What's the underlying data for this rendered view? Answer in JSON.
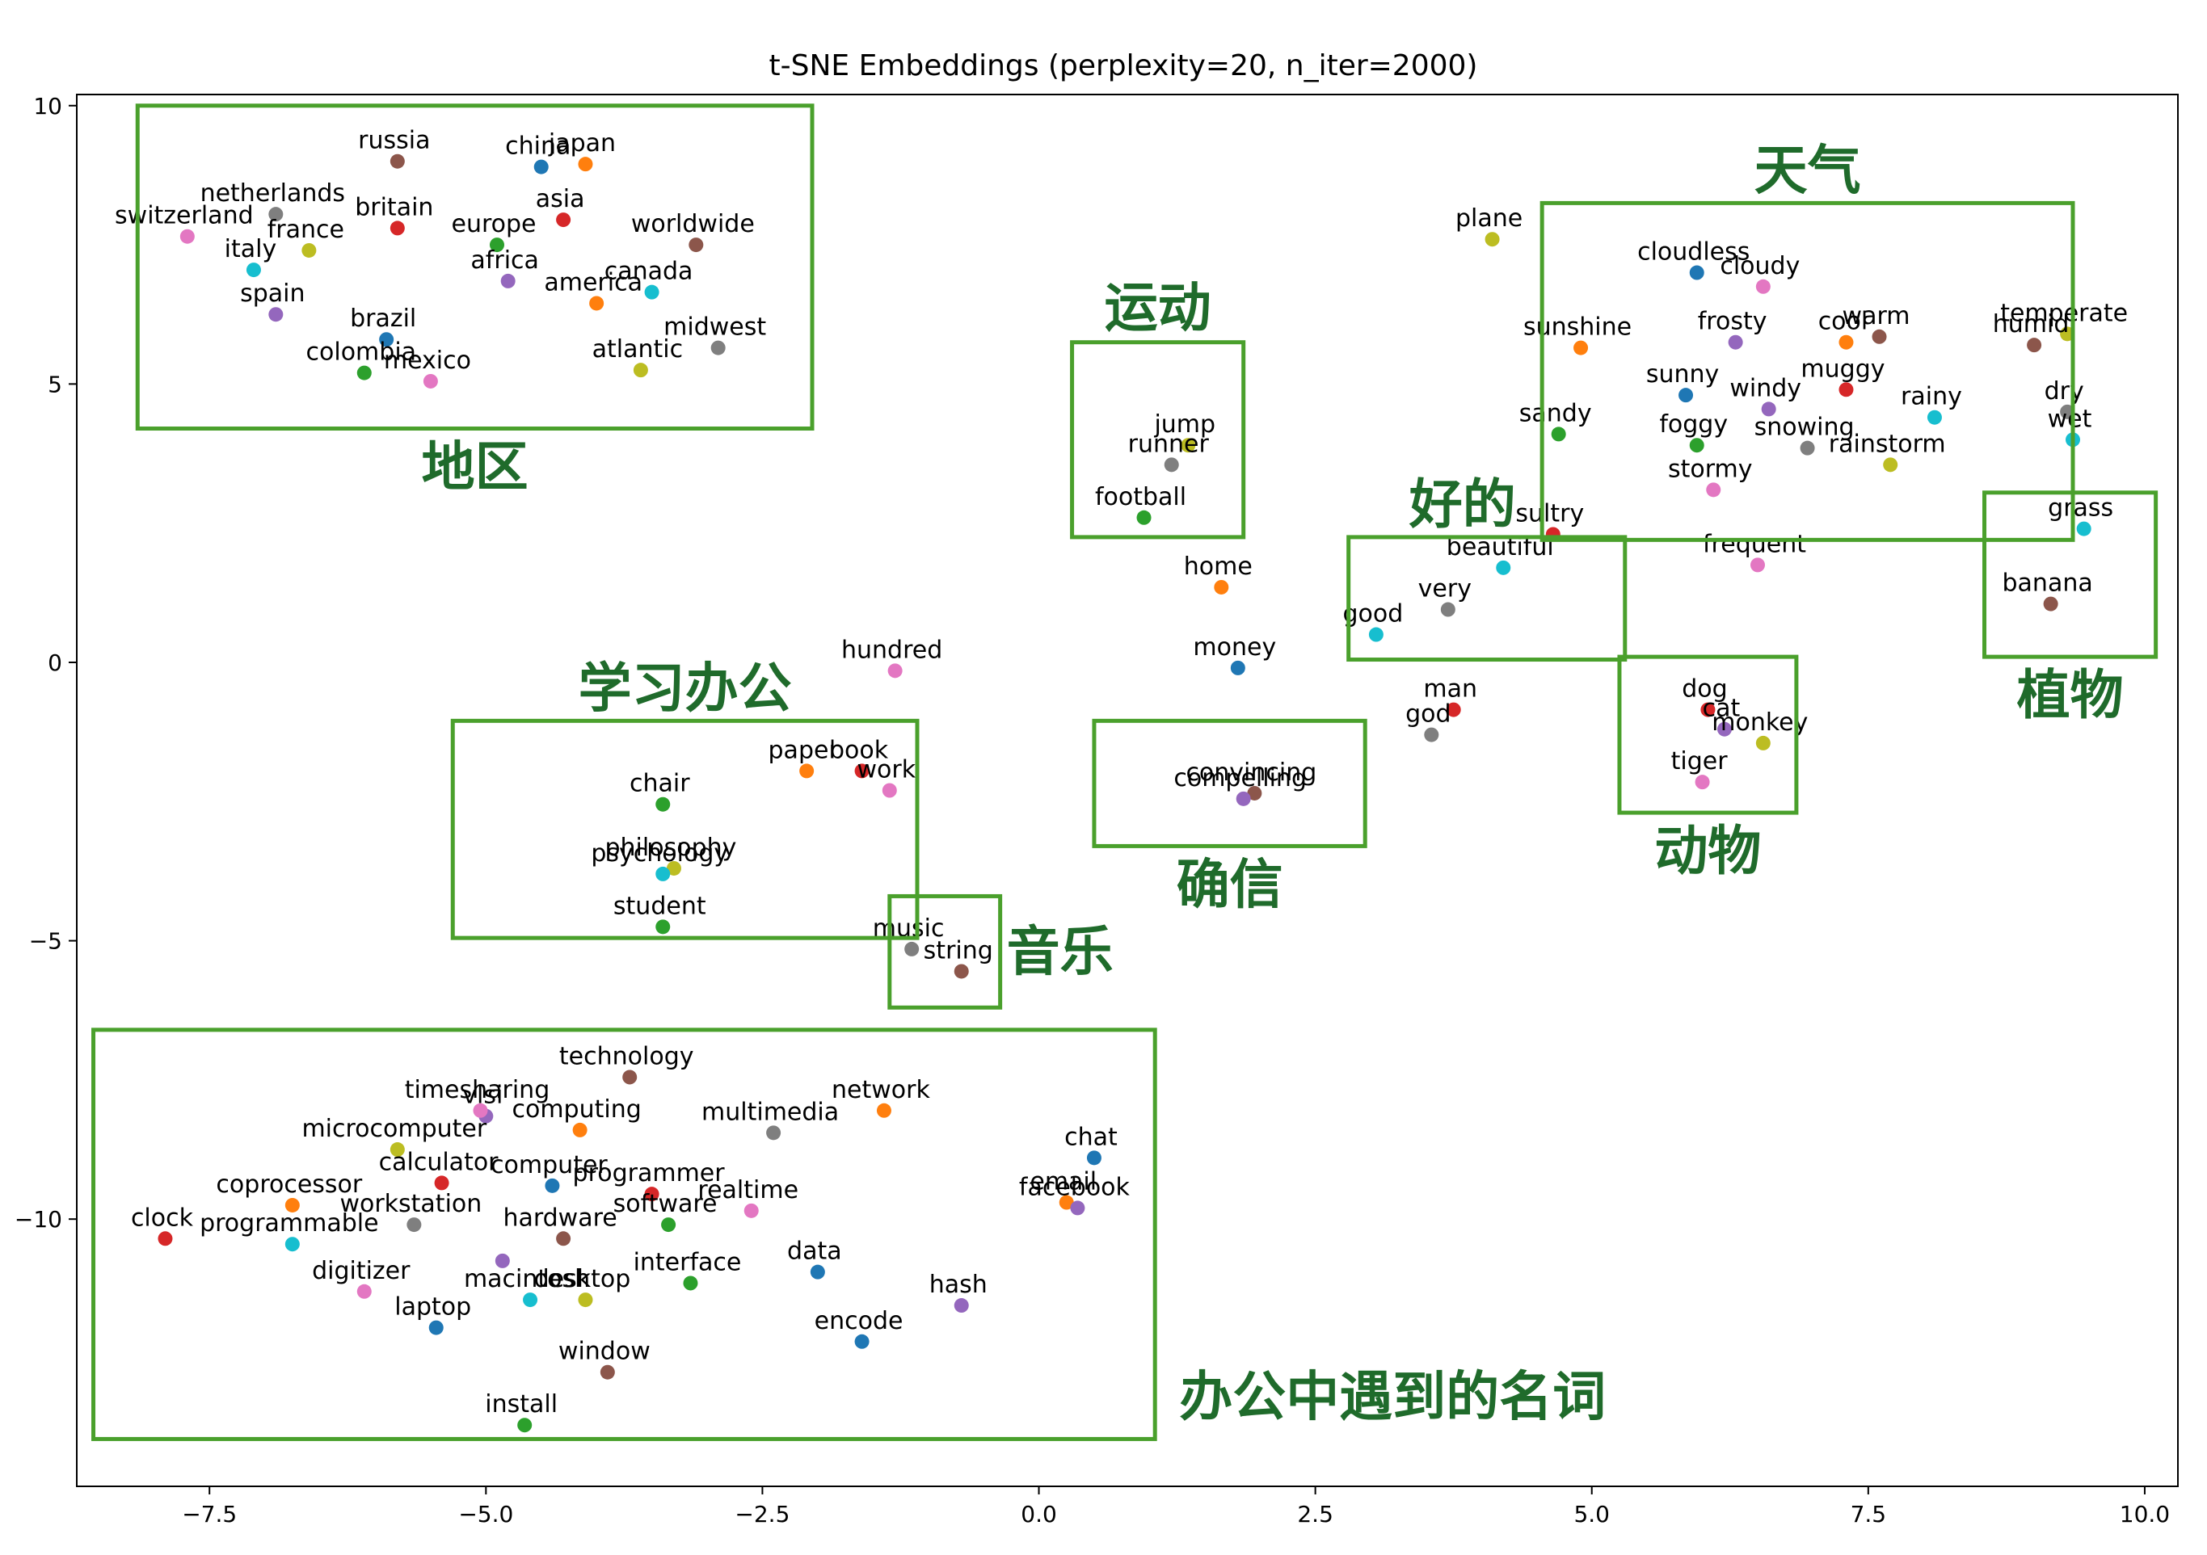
{
  "chart_data": {
    "type": "scatter",
    "title": "t-SNE Embeddings (perplexity=20, n_iter=2000)",
    "xlabel": "",
    "ylabel": "",
    "xlim": [
      -8.7,
      10.3
    ],
    "ylim": [
      -14.8,
      10.2
    ],
    "xticks": [
      -7.5,
      -5.0,
      -2.5,
      0.0,
      2.5,
      5.0,
      7.5,
      10.0
    ],
    "yticks": [
      10,
      5,
      0,
      -5,
      -10
    ],
    "xtick_labels": [
      "−7.5",
      "−5.0",
      "−2.5",
      "0.0",
      "2.5",
      "5.0",
      "7.5",
      "10.0"
    ],
    "ytick_labels": [
      "10",
      "5",
      "0",
      "−5",
      "−10"
    ],
    "grid": false,
    "palette": [
      "#1f77b4",
      "#ff7f0e",
      "#2ca02c",
      "#d62728",
      "#9467bd",
      "#8c564b",
      "#e377c2",
      "#7f7f7f",
      "#bcbd22",
      "#17becf"
    ],
    "box_color": "#4aa02c",
    "annotation_color": "#1f6b2b",
    "points": [
      {
        "word": "russia",
        "x": -5.8,
        "y": 9.0,
        "c": 5
      },
      {
        "word": "china",
        "x": -4.5,
        "y": 8.9,
        "c": 0
      },
      {
        "word": "japan",
        "x": -4.1,
        "y": 8.95,
        "c": 1
      },
      {
        "word": "netherlands",
        "x": -6.9,
        "y": 8.05,
        "c": 7
      },
      {
        "word": "britain",
        "x": -5.8,
        "y": 7.8,
        "c": 3
      },
      {
        "word": "asia",
        "x": -4.3,
        "y": 7.95,
        "c": 3
      },
      {
        "word": "switzerland",
        "x": -7.7,
        "y": 7.65,
        "c": 6
      },
      {
        "word": "france",
        "x": -6.6,
        "y": 7.4,
        "c": 8
      },
      {
        "word": "europe",
        "x": -4.9,
        "y": 7.5,
        "c": 2
      },
      {
        "word": "worldwide",
        "x": -3.1,
        "y": 7.5,
        "c": 5
      },
      {
        "word": "italy",
        "x": -7.1,
        "y": 7.05,
        "c": 9
      },
      {
        "word": "africa",
        "x": -4.8,
        "y": 6.85,
        "c": 4
      },
      {
        "word": "canada",
        "x": -3.5,
        "y": 6.65,
        "c": 9
      },
      {
        "word": "america",
        "x": -4.0,
        "y": 6.45,
        "c": 1
      },
      {
        "word": "spain",
        "x": -6.9,
        "y": 6.25,
        "c": 4
      },
      {
        "word": "midwest",
        "x": -2.9,
        "y": 5.65,
        "c": 7
      },
      {
        "word": "brazil",
        "x": -5.9,
        "y": 5.8,
        "c": 0
      },
      {
        "word": "colombia",
        "x": -6.1,
        "y": 5.2,
        "c": 2
      },
      {
        "word": "mexico",
        "x": -5.5,
        "y": 5.05,
        "c": 6
      },
      {
        "word": "atlantic",
        "x": -3.6,
        "y": 5.25,
        "c": 8
      },
      {
        "word": "plane",
        "x": 4.1,
        "y": 7.6,
        "c": 8
      },
      {
        "word": "cloudless",
        "x": 5.95,
        "y": 7.0,
        "c": 0
      },
      {
        "word": "cloudy",
        "x": 6.55,
        "y": 6.75,
        "c": 6
      },
      {
        "word": "sunshine",
        "x": 4.9,
        "y": 5.65,
        "c": 1
      },
      {
        "word": "frosty",
        "x": 6.3,
        "y": 5.75,
        "c": 4
      },
      {
        "word": "cool",
        "x": 7.3,
        "y": 5.75,
        "c": 1
      },
      {
        "word": "warm",
        "x": 7.6,
        "y": 5.85,
        "c": 5
      },
      {
        "word": "temperate",
        "x": 9.3,
        "y": 5.9,
        "c": 8
      },
      {
        "word": "humid",
        "x": 9.0,
        "y": 5.7,
        "c": 5
      },
      {
        "word": "sunny",
        "x": 5.85,
        "y": 4.8,
        "c": 0
      },
      {
        "word": "muggy",
        "x": 7.3,
        "y": 4.9,
        "c": 3
      },
      {
        "word": "windy",
        "x": 6.6,
        "y": 4.55,
        "c": 4
      },
      {
        "word": "rainy",
        "x": 8.1,
        "y": 4.4,
        "c": 9
      },
      {
        "word": "dry",
        "x": 9.3,
        "y": 4.5,
        "c": 7
      },
      {
        "word": "sandy",
        "x": 4.7,
        "y": 4.1,
        "c": 2
      },
      {
        "word": "foggy",
        "x": 5.95,
        "y": 3.9,
        "c": 2
      },
      {
        "word": "snowing",
        "x": 6.95,
        "y": 3.85,
        "c": 7
      },
      {
        "word": "wet",
        "x": 9.35,
        "y": 4.0,
        "c": 9
      },
      {
        "word": "stormy",
        "x": 6.1,
        "y": 3.1,
        "c": 6
      },
      {
        "word": "rainstorm",
        "x": 7.7,
        "y": 3.55,
        "c": 8
      },
      {
        "word": "sultry",
        "x": 4.65,
        "y": 2.3,
        "c": 3
      },
      {
        "word": "frequent",
        "x": 6.5,
        "y": 1.75,
        "c": 6
      },
      {
        "word": "grass",
        "x": 9.45,
        "y": 2.4,
        "c": 9
      },
      {
        "word": "banana",
        "x": 9.15,
        "y": 1.05,
        "c": 5
      },
      {
        "word": "jump",
        "x": 1.35,
        "y": 3.9,
        "c": 8
      },
      {
        "word": "runner",
        "x": 1.2,
        "y": 3.55,
        "c": 7
      },
      {
        "word": "football",
        "x": 0.95,
        "y": 2.6,
        "c": 2
      },
      {
        "word": "home",
        "x": 1.65,
        "y": 1.35,
        "c": 1
      },
      {
        "word": "beautiful",
        "x": 4.2,
        "y": 1.7,
        "c": 9
      },
      {
        "word": "very",
        "x": 3.7,
        "y": 0.95,
        "c": 7
      },
      {
        "word": "good",
        "x": 3.05,
        "y": 0.5,
        "c": 9
      },
      {
        "word": "money",
        "x": 1.8,
        "y": -0.1,
        "c": 0
      },
      {
        "word": "hundred",
        "x": -1.3,
        "y": -0.15,
        "c": 6
      },
      {
        "word": "man",
        "x": 3.75,
        "y": -0.85,
        "c": 3
      },
      {
        "word": "god",
        "x": 3.55,
        "y": -1.3,
        "c": 7
      },
      {
        "word": "dog",
        "x": 6.05,
        "y": -0.85,
        "c": 3
      },
      {
        "word": "cat",
        "x": 6.2,
        "y": -1.2,
        "c": 4
      },
      {
        "word": "monkey",
        "x": 6.55,
        "y": -1.45,
        "c": 8
      },
      {
        "word": "tiger",
        "x": 6.0,
        "y": -2.15,
        "c": 6
      },
      {
        "word": "convincing",
        "x": 1.95,
        "y": -2.35,
        "c": 5
      },
      {
        "word": "compelling",
        "x": 1.85,
        "y": -2.45,
        "c": 4
      },
      {
        "word": "paper",
        "x": -2.1,
        "y": -1.95,
        "c": 1
      },
      {
        "word": "book",
        "x": -1.6,
        "y": -1.95,
        "c": 3
      },
      {
        "word": "work",
        "x": -1.35,
        "y": -2.3,
        "c": 6
      },
      {
        "word": "chair",
        "x": -3.4,
        "y": -2.55,
        "c": 2
      },
      {
        "word": "philosophy",
        "x": -3.3,
        "y": -3.7,
        "c": 8
      },
      {
        "word": "psychology",
        "x": -3.4,
        "y": -3.8,
        "c": 9
      },
      {
        "word": "student",
        "x": -3.4,
        "y": -4.75,
        "c": 2
      },
      {
        "word": "music",
        "x": -1.15,
        "y": -5.15,
        "c": 7
      },
      {
        "word": "string",
        "x": -0.7,
        "y": -5.55,
        "c": 5
      },
      {
        "word": "technology",
        "x": -3.7,
        "y": -7.45,
        "c": 5
      },
      {
        "word": "network",
        "x": -1.4,
        "y": -8.05,
        "c": 1
      },
      {
        "word": "vlsi",
        "x": -5.0,
        "y": -8.15,
        "c": 4
      },
      {
        "word": "timesharing",
        "x": -5.05,
        "y": -8.05,
        "c": 6
      },
      {
        "word": "computing",
        "x": -4.15,
        "y": -8.4,
        "c": 1
      },
      {
        "word": "multimedia",
        "x": -2.4,
        "y": -8.45,
        "c": 7
      },
      {
        "word": "microcomputer",
        "x": -5.8,
        "y": -8.75,
        "c": 8
      },
      {
        "word": "chat",
        "x": 0.5,
        "y": -8.9,
        "c": 0
      },
      {
        "word": "computer",
        "x": -4.4,
        "y": -9.4,
        "c": 0
      },
      {
        "word": "calculator",
        "x": -5.4,
        "y": -9.35,
        "c": 3
      },
      {
        "word": "programmer",
        "x": -3.5,
        "y": -9.55,
        "c": 3
      },
      {
        "word": "email",
        "x": 0.25,
        "y": -9.7,
        "c": 1
      },
      {
        "word": "coprocessor",
        "x": -6.75,
        "y": -9.75,
        "c": 1
      },
      {
        "word": "facebook",
        "x": 0.35,
        "y": -9.8,
        "c": 4
      },
      {
        "word": "realtime",
        "x": -2.6,
        "y": -9.85,
        "c": 6
      },
      {
        "word": "software",
        "x": -3.35,
        "y": -10.1,
        "c": 2
      },
      {
        "word": "workstation",
        "x": -5.65,
        "y": -10.1,
        "c": 7
      },
      {
        "word": "hardware",
        "x": -4.3,
        "y": -10.35,
        "c": 5
      },
      {
        "word": "clock",
        "x": -7.9,
        "y": -10.35,
        "c": 3
      },
      {
        "word": "programmable",
        "x": -6.75,
        "y": -10.45,
        "c": 9
      },
      {
        "word": "workstation_dot",
        "x": -4.85,
        "y": -10.75,
        "c": 4,
        "nolabel": true
      },
      {
        "word": "interface",
        "x": -3.15,
        "y": -11.15,
        "c": 2
      },
      {
        "word": "data",
        "x": -2.0,
        "y": -10.95,
        "c": 0
      },
      {
        "word": "macintosh",
        "x": -4.6,
        "y": -11.45,
        "c": 9
      },
      {
        "word": "desktop",
        "x": -4.1,
        "y": -11.45,
        "c": 8
      },
      {
        "word": "digitizer",
        "x": -6.1,
        "y": -11.3,
        "c": 6
      },
      {
        "word": "hash",
        "x": -0.7,
        "y": -11.55,
        "c": 4
      },
      {
        "word": "laptop",
        "x": -5.45,
        "y": -11.95,
        "c": 0
      },
      {
        "word": "encode",
        "x": -1.6,
        "y": -12.2,
        "c": 0
      },
      {
        "word": "window",
        "x": -3.9,
        "y": -12.75,
        "c": 5
      },
      {
        "word": "install",
        "x": -4.65,
        "y": -13.7,
        "c": 2
      }
    ],
    "groups": [
      {
        "label": "地区",
        "box": [
          -8.15,
          4.2,
          -2.05,
          10.0
        ]
      },
      {
        "label": "天气",
        "box": [
          4.55,
          2.2,
          9.35,
          8.25
        ]
      },
      {
        "label": "运动",
        "box": [
          0.3,
          2.25,
          1.85,
          5.75
        ]
      },
      {
        "label": "好的",
        "box": [
          2.8,
          0.05,
          5.3,
          2.25
        ]
      },
      {
        "label": "植物",
        "box": [
          8.55,
          0.1,
          10.1,
          3.05
        ]
      },
      {
        "label": "动物",
        "box": [
          5.25,
          -2.7,
          6.85,
          0.1
        ]
      },
      {
        "label": "确信",
        "box": [
          0.5,
          -3.3,
          2.95,
          -1.05
        ]
      },
      {
        "label": "学习办公",
        "box": [
          -5.3,
          -4.95,
          -1.1,
          -1.05
        ]
      },
      {
        "label": "音乐",
        "box": [
          -1.35,
          -6.2,
          -0.35,
          -4.2
        ]
      },
      {
        "label": "办公中遇到的名词",
        "box": [
          -8.55,
          -13.95,
          1.05,
          -6.6
        ]
      }
    ]
  }
}
